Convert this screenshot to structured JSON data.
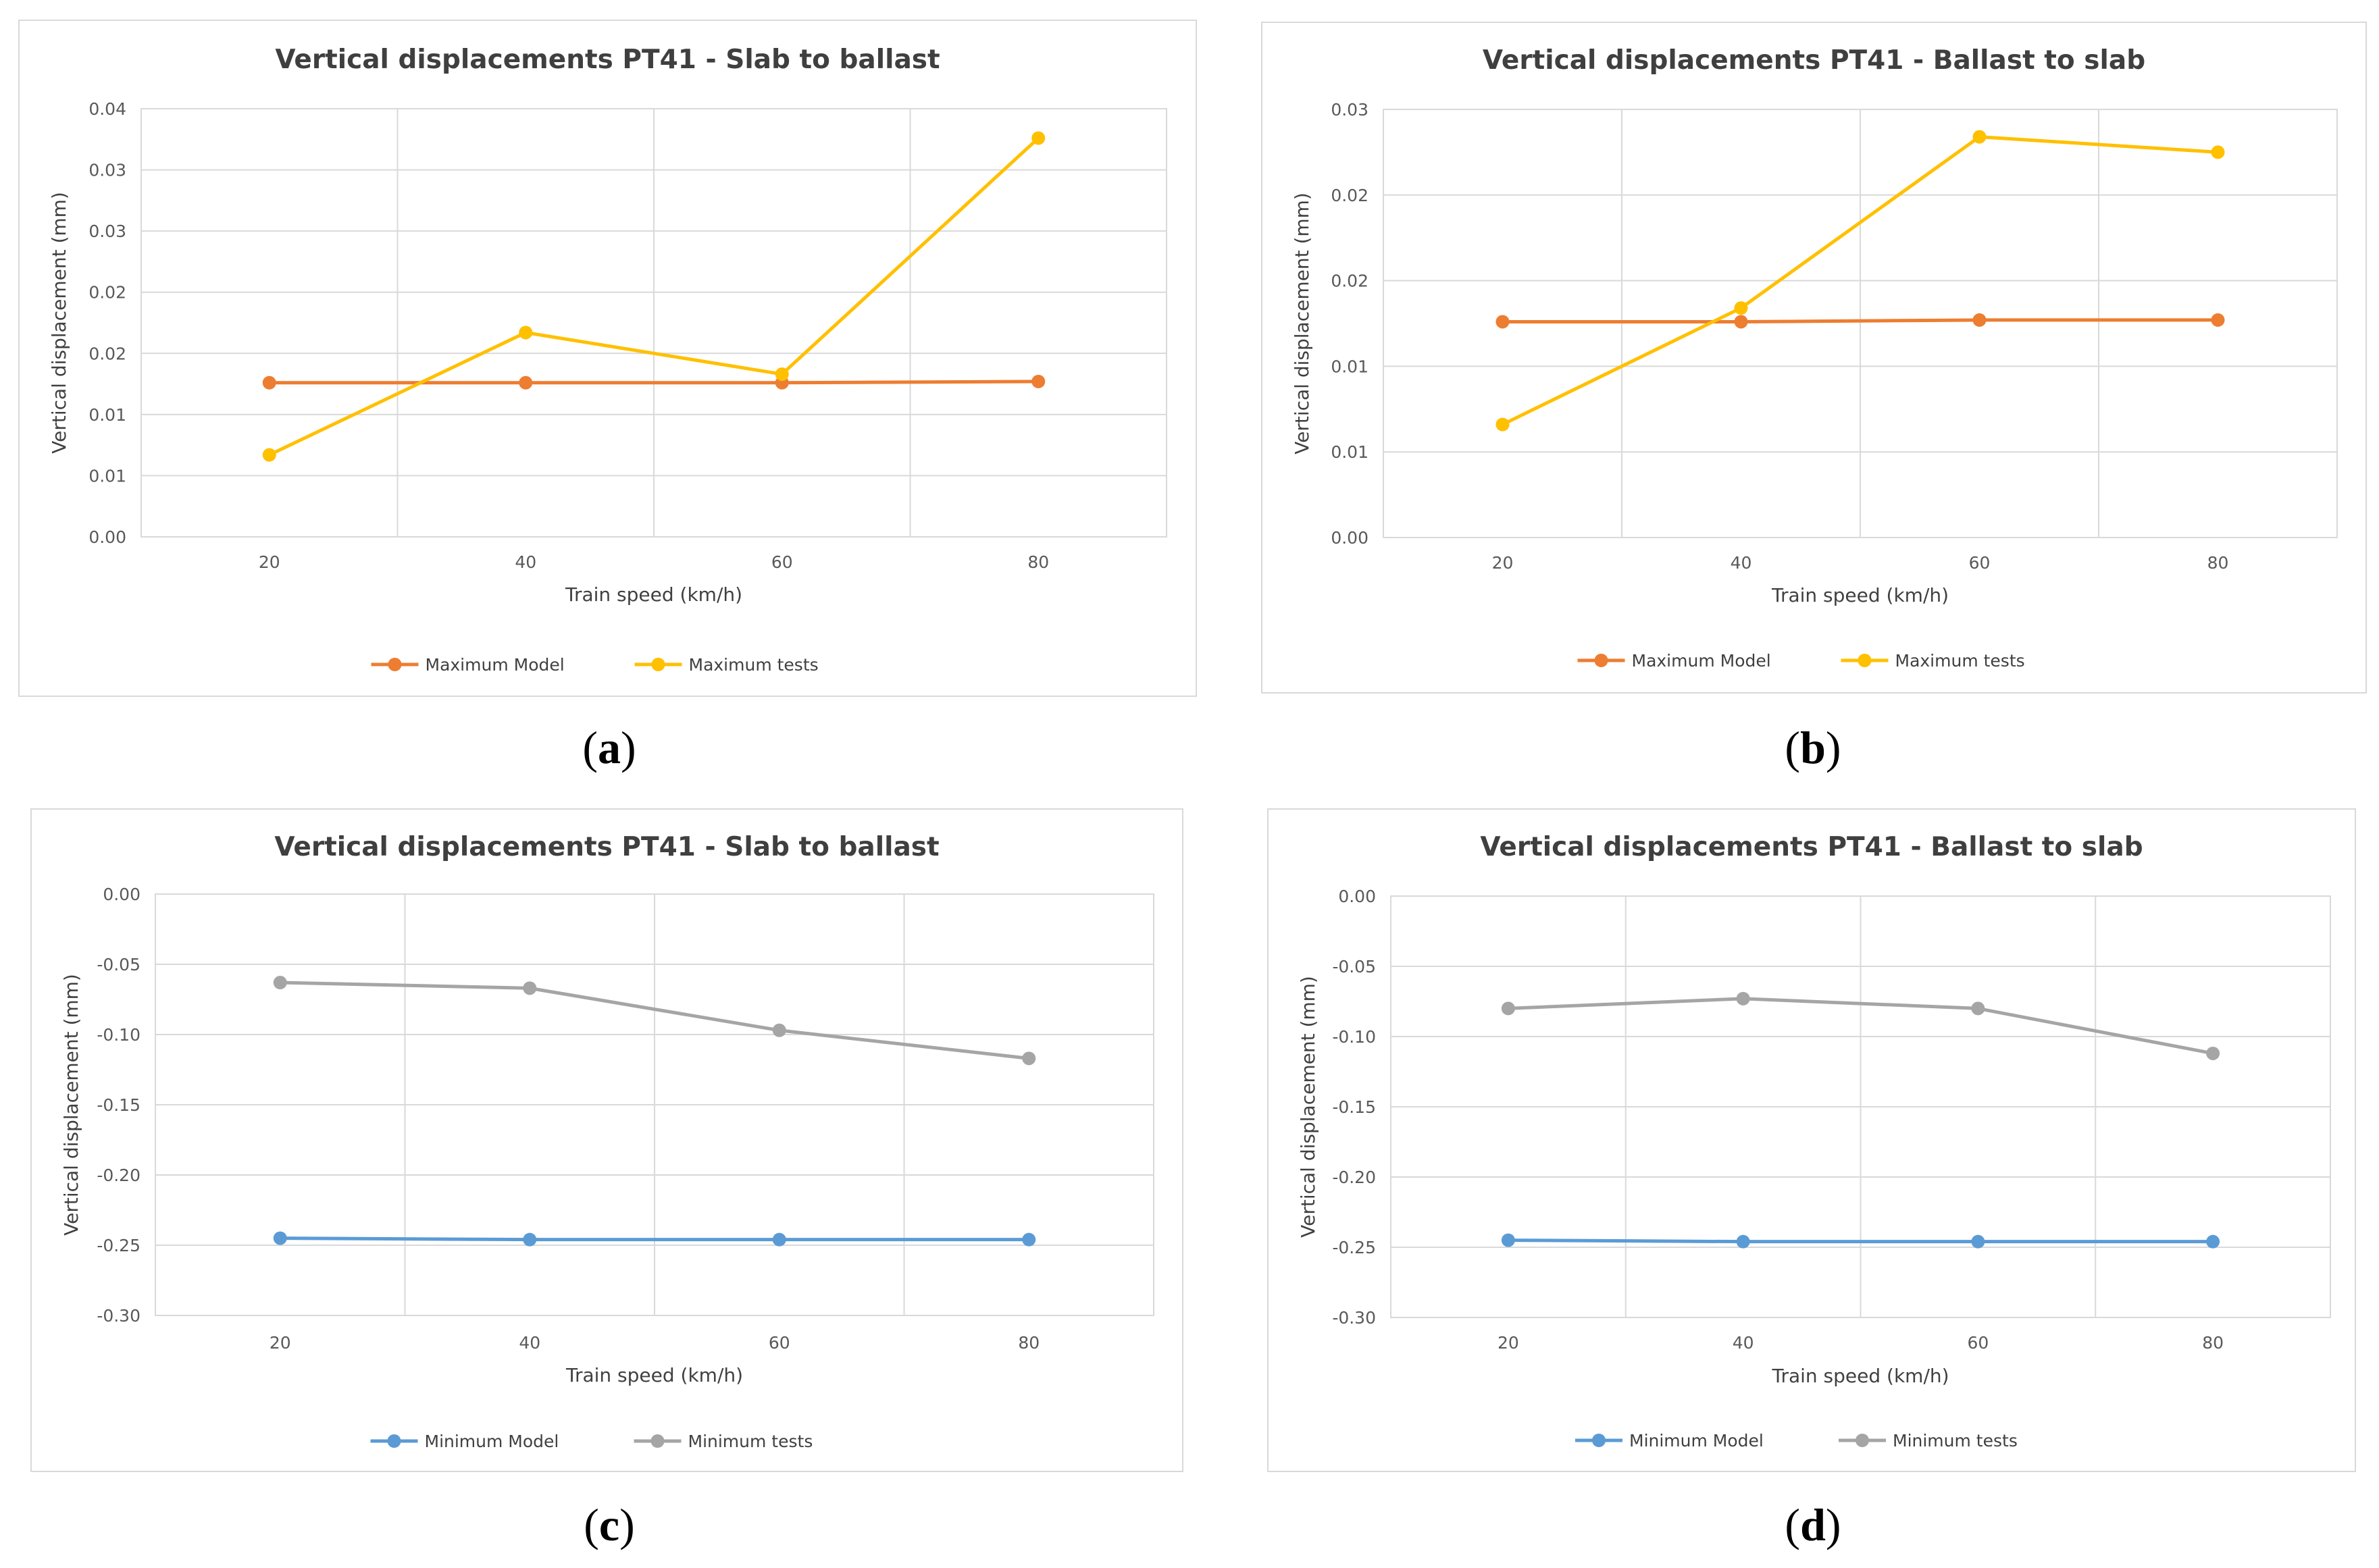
{
  "captions": [
    "a",
    "b",
    "c",
    "d"
  ],
  "chart_data": [
    {
      "type": "line",
      "title": "Vertical displacements PT41 - Slab to ballast",
      "xlabel": "Train speed (km/h)",
      "ylabel": "Vertical displacement (mm)",
      "categories": [
        "20",
        "40",
        "60",
        "80"
      ],
      "ylim": [
        0,
        0.035
      ],
      "yticks": [
        0,
        0.005,
        0.01,
        0.015,
        0.02,
        0.025,
        0.03,
        0.035
      ],
      "ytick_labels": [
        "0.00",
        "0.01",
        "0.01",
        "0.02",
        "0.02",
        "0.03",
        "0.03",
        "0.04"
      ],
      "xgrid_divisions": 4,
      "legend_position": "bottom",
      "series": [
        {
          "name": "Maximum Model",
          "color": "#ED7D31",
          "values": [
            0.0126,
            0.0126,
            0.0126,
            0.0127
          ]
        },
        {
          "name": "Maximum tests",
          "color": "#FFC000",
          "values": [
            0.0067,
            0.0167,
            0.0133,
            0.0326
          ]
        }
      ]
    },
    {
      "type": "line",
      "title": "Vertical displacements PT41 - Ballast to slab",
      "xlabel": "Train speed (km/h)",
      "ylabel": "Vertical displacement (mm)",
      "categories": [
        "20",
        "40",
        "60",
        "80"
      ],
      "ylim": [
        0,
        0.025
      ],
      "yticks": [
        0,
        0.005,
        0.01,
        0.015,
        0.02,
        0.025
      ],
      "ytick_labels": [
        "0.00",
        "0.01",
        "0.01",
        "0.02",
        "0.02",
        "0.03"
      ],
      "xgrid_divisions": 4,
      "legend_position": "bottom",
      "series": [
        {
          "name": "Maximum Model",
          "color": "#ED7D31",
          "values": [
            0.0126,
            0.0126,
            0.0127,
            0.0127
          ]
        },
        {
          "name": "Maximum tests",
          "color": "#FFC000",
          "values": [
            0.0066,
            0.0134,
            0.0234,
            0.0225
          ]
        }
      ]
    },
    {
      "type": "line",
      "title": "Vertical displacements PT41 - Slab to ballast",
      "xlabel": "Train speed (km/h)",
      "ylabel": "Vertical displacement (mm)",
      "categories": [
        "20",
        "40",
        "60",
        "80"
      ],
      "ylim": [
        -0.3,
        0
      ],
      "yticks": [
        0,
        -0.05,
        -0.1,
        -0.15,
        -0.2,
        -0.25,
        -0.3
      ],
      "ytick_labels": [
        "0.00",
        "-0.05",
        "-0.10",
        "-0.15",
        "-0.20",
        "-0.25",
        "-0.30"
      ],
      "xgrid_divisions": 4,
      "legend_position": "bottom",
      "series": [
        {
          "name": "Minimum Model",
          "color": "#5B9BD5",
          "values": [
            -0.245,
            -0.246,
            -0.246,
            -0.246
          ]
        },
        {
          "name": "Minimum tests",
          "color": "#A5A5A5",
          "values": [
            -0.063,
            -0.067,
            -0.097,
            -0.117
          ]
        }
      ]
    },
    {
      "type": "line",
      "title": "Vertical displacements PT41 - Ballast to slab",
      "xlabel": "Train speed (km/h)",
      "ylabel": "Vertical displacement (mm)",
      "categories": [
        "20",
        "40",
        "60",
        "80"
      ],
      "ylim": [
        -0.3,
        0
      ],
      "yticks": [
        0,
        -0.05,
        -0.1,
        -0.15,
        -0.2,
        -0.25,
        -0.3
      ],
      "ytick_labels": [
        "0.00",
        "-0.05",
        "-0.10",
        "-0.15",
        "-0.20",
        "-0.25",
        "-0.30"
      ],
      "xgrid_divisions": 4,
      "legend_position": "bottom",
      "series": [
        {
          "name": "Minimum Model",
          "color": "#5B9BD5",
          "values": [
            -0.245,
            -0.246,
            -0.246,
            -0.246
          ]
        },
        {
          "name": "Minimum tests",
          "color": "#A5A5A5",
          "values": [
            -0.08,
            -0.073,
            -0.08,
            -0.112
          ]
        }
      ]
    }
  ]
}
